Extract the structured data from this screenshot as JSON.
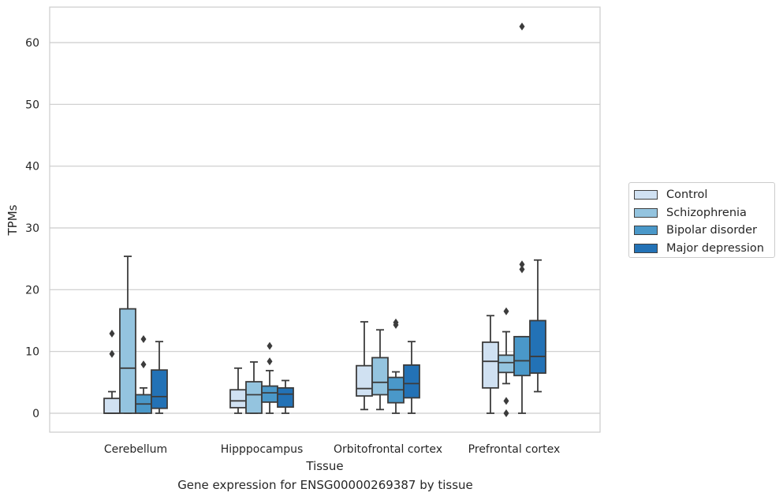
{
  "caption": "Gene expression for ENSG00000269387 by tissue",
  "chart_data": {
    "type": "box",
    "xlabel": "Tissue",
    "ylabel": "TPMs",
    "ylim": [
      -3,
      66
    ],
    "yticks": [
      0,
      10,
      20,
      30,
      40,
      50,
      60
    ],
    "grid": "horizontal",
    "legend_position": "right",
    "categories": [
      "Cerebellum",
      "Hipppocampus",
      "Orbitofrontal cortex",
      "Prefrontal cortex"
    ],
    "series": [
      {
        "name": "Control",
        "color": "#d0e1f2",
        "boxes": [
          {
            "whislo": 0,
            "q1": 0,
            "med": 0,
            "q3": 2.4,
            "whishi": 3.5,
            "fliers": [
              9.6,
              12.9
            ]
          },
          {
            "whislo": 0,
            "q1": 0.9,
            "med": 2.0,
            "q3": 3.8,
            "whishi": 7.3,
            "fliers": []
          },
          {
            "whislo": 0.6,
            "q1": 2.8,
            "med": 4.0,
            "q3": 7.7,
            "whishi": 14.8,
            "fliers": []
          },
          {
            "whislo": 0,
            "q1": 4.1,
            "med": 8.4,
            "q3": 11.5,
            "whishi": 15.8,
            "fliers": []
          }
        ]
      },
      {
        "name": "Schizophrenia",
        "color": "#94c4df",
        "boxes": [
          {
            "whislo": 0,
            "q1": 0,
            "med": 7.3,
            "q3": 16.9,
            "whishi": 25.4,
            "fliers": []
          },
          {
            "whislo": 0,
            "q1": 0,
            "med": 3.0,
            "q3": 5.1,
            "whishi": 8.3,
            "fliers": []
          },
          {
            "whislo": 0.6,
            "q1": 3.0,
            "med": 5.0,
            "q3": 9.0,
            "whishi": 13.5,
            "fliers": []
          },
          {
            "whislo": 4.8,
            "q1": 6.6,
            "med": 8.2,
            "q3": 9.4,
            "whishi": 13.2,
            "fliers": [
              16.5,
              2.0,
              0
            ]
          }
        ]
      },
      {
        "name": "Bipolar disorder",
        "color": "#4a98c9",
        "boxes": [
          {
            "whislo": 0,
            "q1": 0,
            "med": 1.5,
            "q3": 3.0,
            "whishi": 4.1,
            "fliers": [
              12.0,
              7.9
            ]
          },
          {
            "whislo": 0,
            "q1": 1.8,
            "med": 3.3,
            "q3": 4.4,
            "whishi": 6.9,
            "fliers": [
              8.4,
              10.9
            ]
          },
          {
            "whislo": 0,
            "q1": 1.7,
            "med": 3.8,
            "q3": 5.8,
            "whishi": 6.7,
            "fliers": [
              14.3,
              14.7
            ]
          },
          {
            "whislo": 0,
            "q1": 6.1,
            "med": 8.5,
            "q3": 12.4,
            "whishi": 12.4,
            "fliers": [
              62.6,
              23.3,
              24.1
            ]
          }
        ]
      },
      {
        "name": "Major depression",
        "color": "#2372b6",
        "boxes": [
          {
            "whislo": 0,
            "q1": 0.8,
            "med": 2.7,
            "q3": 7.0,
            "whishi": 11.6,
            "fliers": []
          },
          {
            "whislo": 0,
            "q1": 1.0,
            "med": 3.1,
            "q3": 4.1,
            "whishi": 5.3,
            "fliers": []
          },
          {
            "whislo": 0,
            "q1": 2.5,
            "med": 4.8,
            "q3": 7.8,
            "whishi": 11.6,
            "fliers": []
          },
          {
            "whislo": 3.5,
            "q1": 6.5,
            "med": 9.2,
            "q3": 15.0,
            "whishi": 24.8,
            "fliers": []
          }
        ]
      }
    ]
  }
}
